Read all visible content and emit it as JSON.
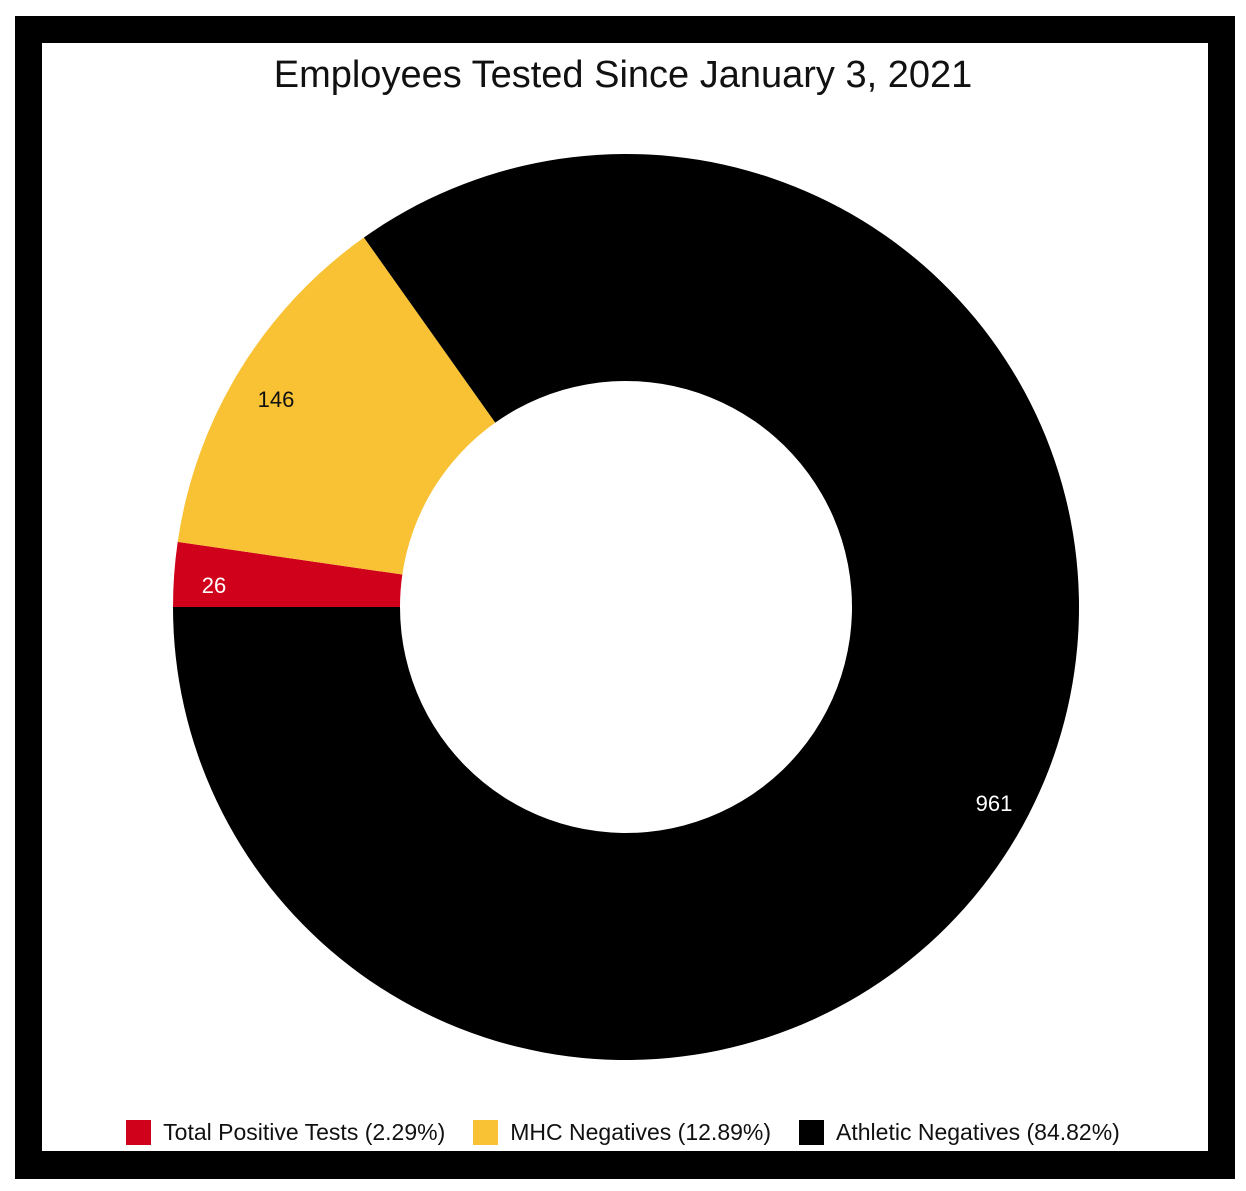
{
  "chart_data": {
    "type": "pie",
    "title": "Employees Tested Since January 3, 2021",
    "donut": true,
    "slices": [
      {
        "label": "Total Positive Tests",
        "value": 26,
        "percent_label": "2.29%",
        "color": "#d0021b",
        "label_color": "#ffffff"
      },
      {
        "label": "MHC Negatives",
        "value": 146,
        "percent_label": "12.89%",
        "color": "#f9c235",
        "label_color": "#111111"
      },
      {
        "label": "Athletic Negatives",
        "value": 961,
        "percent_label": "84.82%",
        "color": "#000000",
        "label_color": "#ffffff"
      }
    ],
    "legend_position": "bottom"
  },
  "legend": {
    "items": [
      {
        "text": "Total Positive Tests (2.29%)",
        "color": "#d0021b"
      },
      {
        "text": "MHC Negatives (12.89%)",
        "color": "#f9c235"
      },
      {
        "text": "Athletic Negatives (84.82%)",
        "color": "#000000"
      }
    ]
  },
  "colors": {
    "frame": "#000000",
    "background": "#ffffff"
  }
}
